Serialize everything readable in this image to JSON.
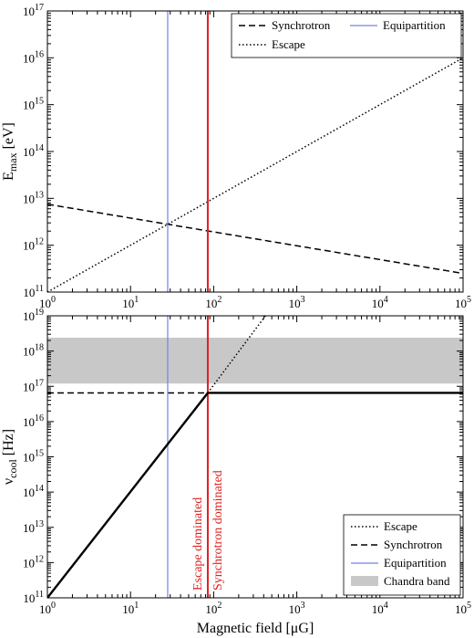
{
  "chart_data": [
    {
      "type": "line",
      "panel": "top",
      "xscale": "log",
      "yscale": "log",
      "xlim": [
        1,
        100000
      ],
      "ylim": [
        100000000000.0,
        1e+17
      ],
      "xlabel": "",
      "ylabel_main": "E",
      "ylabel_sub": "max",
      "ylabel_unit": " [eV]",
      "xtick_exponents": [
        0,
        1,
        2,
        3,
        4,
        5
      ],
      "ytick_exponents": [
        11,
        12,
        13,
        14,
        15,
        16,
        17
      ],
      "tick_base": "10",
      "legend_placement": "top-right",
      "series": [
        {
          "name": "Synchrotron",
          "style": "dashed",
          "color": "#000000",
          "x": [
            1,
            100000
          ],
          "y": [
            7500000000000.0,
            250000000000.0
          ]
        },
        {
          "name": "Escape",
          "style": "dotted",
          "color": "#000000",
          "x": [
            1,
            100000
          ],
          "y": [
            100000000000.0,
            1e+16
          ]
        },
        {
          "name": "Equipartition",
          "style": "vline",
          "color": "#6f83e8",
          "x": [
            28,
            28
          ]
        },
        {
          "name": "",
          "style": "vline",
          "color": "#e02020",
          "x": [
            85,
            85
          ]
        }
      ]
    },
    {
      "type": "line",
      "panel": "bottom",
      "xscale": "log",
      "yscale": "log",
      "xlim": [
        1,
        100000
      ],
      "ylim": [
        100000000000.0,
        1e+19
      ],
      "xlabel": "Magnetic field [μG]",
      "ylabel_main": "ν",
      "ylabel_sub": "cool",
      "ylabel_unit": " [Hz]",
      "xtick_exponents": [
        0,
        1,
        2,
        3,
        4,
        5
      ],
      "ytick_exponents": [
        11,
        12,
        13,
        14,
        15,
        16,
        17,
        18,
        19
      ],
      "tick_base": "10",
      "legend_placement": "bottom-right",
      "band": {
        "name": "Chandra band",
        "color": "#c8c8c8",
        "y": [
          1.2e+17,
          2.4e+18
        ]
      },
      "series": [
        {
          "name": "Escape",
          "style": "dotted",
          "color": "#000000",
          "x": [
            85,
            420
          ],
          "y": [
            6.5e+16,
            1e+19
          ]
        },
        {
          "name": "Synchrotron",
          "style": "dashed",
          "color": "#000000",
          "x": [
            1,
            85
          ],
          "y": [
            6.5e+16,
            6.5e+16
          ]
        },
        {
          "name": "Equipartition",
          "style": "vline",
          "color": "#6f83e8",
          "x": [
            28,
            28
          ]
        },
        {
          "name": "",
          "style": "vline",
          "color": "#e02020",
          "x": [
            85,
            85
          ]
        },
        {
          "name": "",
          "style": "solid",
          "color": "#000000",
          "x": [
            1,
            85,
            100000
          ],
          "y": [
            100000000000.0,
            6.5e+16,
            6.5e+16
          ]
        }
      ],
      "annotations": [
        {
          "text": "Escape dominated",
          "color": "#e02020",
          "x": 85,
          "side": "left"
        },
        {
          "text": "Synchrotron dominated",
          "color": "#e02020",
          "x": 85,
          "side": "right"
        }
      ]
    }
  ]
}
